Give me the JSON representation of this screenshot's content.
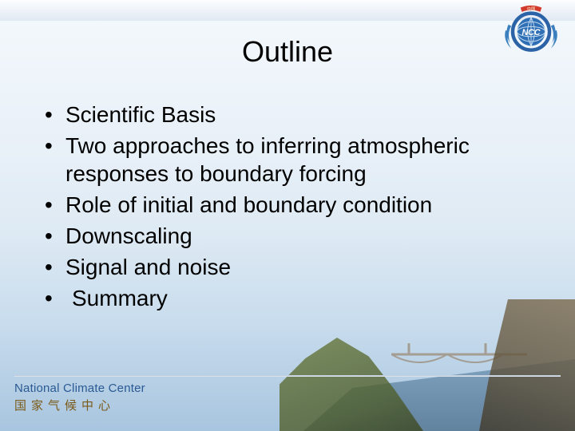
{
  "title": "Outline",
  "bullets": [
    {
      "text": "Scientific Basis",
      "indent": false
    },
    {
      "text": "Two approaches to inferring atmospheric responses to boundary forcing",
      "indent": false
    },
    {
      "text": "Role of initial and boundary condition",
      "indent": false
    },
    {
      "text": "Downscaling",
      "indent": false
    },
    {
      "text": "Signal and noise",
      "indent": false
    },
    {
      "text": " Summary",
      "indent": true
    }
  ],
  "footer": {
    "org_en": "National Climate Center",
    "org_cn": "国家气候中心"
  },
  "logo": {
    "name": "ncc-globe-logo",
    "ribbon_text": "中国",
    "ring_color": "#2b63a6",
    "globe_color": "#2f6fb5",
    "leaf_color": "#3a7fbe",
    "ribbon_color": "#d23a2e",
    "letters": "NCC",
    "letters_color": "#ffffff"
  },
  "colors": {
    "title": "#000000",
    "bullet_text": "#000000",
    "footer_en": "#2a5a94",
    "footer_cn": "#7a5a18",
    "bg_top": "#f5f9fd",
    "bg_bottom": "#a8c5df"
  },
  "fonts": {
    "title_size_pt": 27,
    "bullet_size_pt": 21,
    "footer_size_pt": 11
  }
}
